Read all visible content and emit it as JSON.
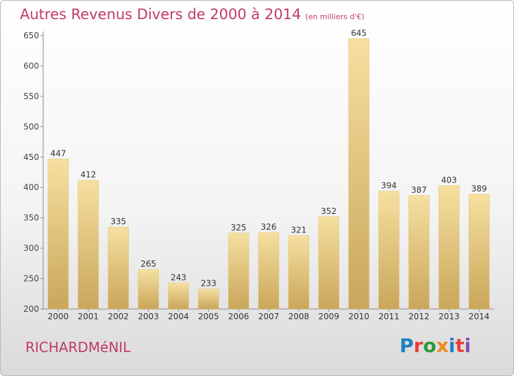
{
  "header": {
    "title": "Autres Revenus Divers de 2000 à 2014",
    "subtitle": "(en milliers d'€)"
  },
  "footer": {
    "town": "RICHARDMéNIL",
    "logo_text": "Proxiti",
    "logo_colors": [
      "#1f7fc4",
      "#e8413c",
      "#2a9a3a",
      "#f08a1c",
      "#1f7fc4",
      "#e8413c",
      "#8b4fb0"
    ]
  },
  "colors": {
    "bar_light": "#f6e0a0",
    "bar_dark": "#c9a65a",
    "axis": "#888888",
    "title": "#c03a6b"
  },
  "chart_data": {
    "type": "bar",
    "categories": [
      "2000",
      "2001",
      "2002",
      "2003",
      "2004",
      "2005",
      "2006",
      "2007",
      "2008",
      "2009",
      "2010",
      "2011",
      "2012",
      "2013",
      "2014"
    ],
    "values": [
      447,
      412,
      335,
      265,
      243,
      233,
      325,
      326,
      321,
      352,
      645,
      394,
      387,
      403,
      389
    ],
    "yticks": [
      200,
      250,
      300,
      350,
      400,
      450,
      500,
      550,
      600,
      650
    ],
    "ylim": [
      200,
      650
    ],
    "grid": false
  }
}
